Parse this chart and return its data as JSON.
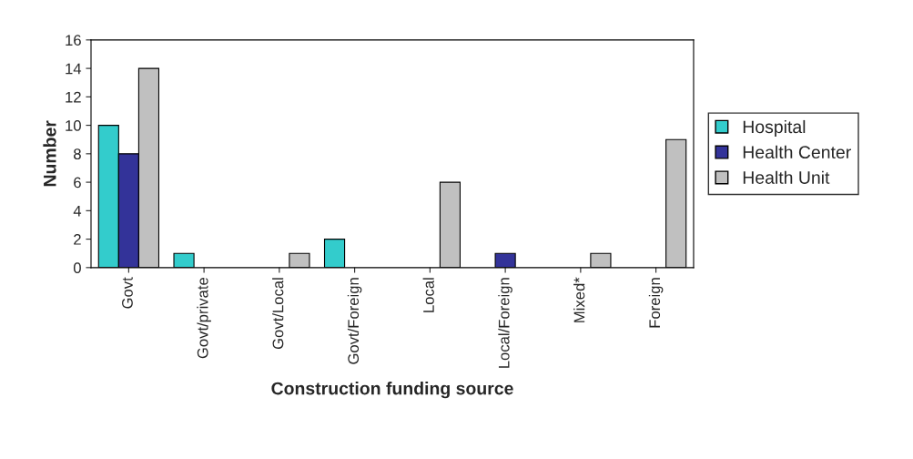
{
  "chart_data": {
    "type": "bar",
    "xlabel": "Construction funding source",
    "ylabel": "Number",
    "categories": [
      "Govt",
      "Govt/private",
      "Govt/Local",
      "Govt/Foreign",
      "Local",
      "Local/Foreign",
      "Mixed*",
      "Foreign"
    ],
    "series": [
      {
        "name": "Hospital",
        "color": "#33cccc",
        "values": [
          10,
          1,
          null,
          2,
          null,
          null,
          null,
          null
        ]
      },
      {
        "name": "Health Center",
        "color": "#333399",
        "values": [
          8,
          null,
          null,
          null,
          null,
          1,
          null,
          null
        ]
      },
      {
        "name": "Health Unit",
        "color": "#c0c0c0",
        "values": [
          14,
          null,
          1,
          null,
          6,
          null,
          1,
          9
        ]
      }
    ],
    "ylim": [
      0,
      16
    ],
    "yticks": [
      0,
      2,
      4,
      6,
      8,
      10,
      12,
      14,
      16
    ],
    "grid": false,
    "legend": "right"
  }
}
